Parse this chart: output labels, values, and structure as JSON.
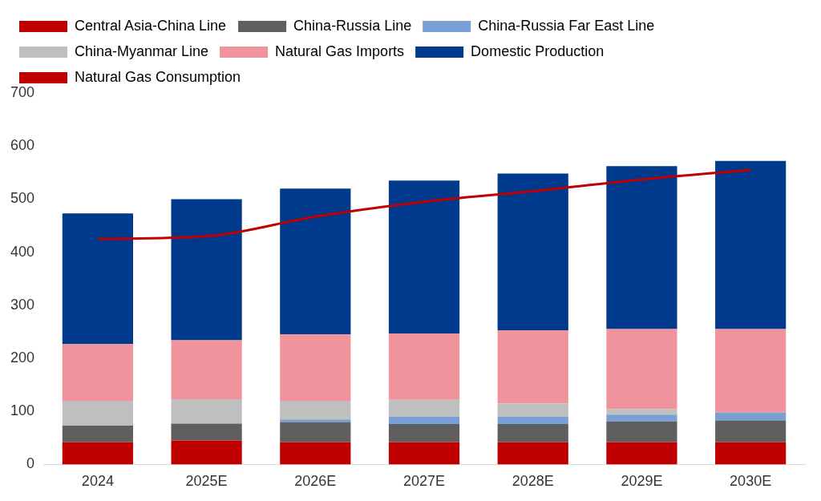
{
  "chart_data": {
    "type": "bar",
    "stacked": true,
    "categories": [
      "2024",
      "2025E",
      "2026E",
      "2027E",
      "2028E",
      "2029E",
      "2030E"
    ],
    "series": [
      {
        "name": "Central Asia-China Line",
        "color": "#c00000",
        "values": [
          42,
          45,
          42,
          42,
          42,
          42,
          42
        ]
      },
      {
        "name": "China-Russia Line",
        "color": "#5f5f5f",
        "values": [
          31,
          32,
          38,
          34,
          34,
          39,
          41
        ]
      },
      {
        "name": "China-Russia Far East Line",
        "color": "#7a9fd4",
        "values": [
          0,
          0,
          5,
          14,
          14,
          13,
          15
        ]
      },
      {
        "name": "China-Myanmar Line",
        "color": "#bfbfbf",
        "values": [
          47,
          46,
          35,
          32,
          25,
          10,
          0
        ]
      },
      {
        "name": "Natural Gas Imports",
        "color": "#f0939c",
        "values": [
          107,
          111,
          125,
          125,
          138,
          151,
          157
        ]
      },
      {
        "name": "Domestic Production",
        "color": "#003a8c",
        "values": [
          246,
          266,
          275,
          288,
          295,
          307,
          317
        ]
      },
      {
        "name": "Natural Gas Consumption",
        "type": "line",
        "color": "#c00000",
        "values": [
          425,
          430,
          467,
          495,
          515,
          537,
          555
        ]
      }
    ],
    "ylim": [
      0,
      700
    ],
    "yticks": [
      0,
      100,
      200,
      300,
      400,
      500,
      600,
      700
    ],
    "grid": false,
    "legend": "top",
    "marker": "none"
  }
}
